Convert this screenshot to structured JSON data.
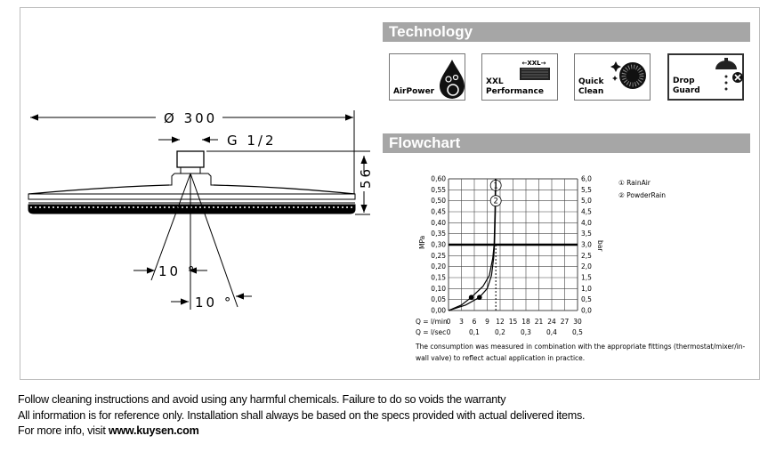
{
  "technology": {
    "title": "Technology",
    "items": [
      {
        "label": "AirPower",
        "icon": "air-drop-icon"
      },
      {
        "label": "XXL\nPerformance",
        "icon": "xxl-spray-icon",
        "badge": "←XXL→"
      },
      {
        "label": "Quick\nClean",
        "icon": "quick-clean-icon"
      },
      {
        "label": "Drop\nGuard",
        "icon": "drop-guard-icon"
      }
    ]
  },
  "flowchart": {
    "title": "Flowchart"
  },
  "drawing": {
    "diameter": "Ø 300",
    "thread": "G 1/2",
    "height": "56",
    "angle_left": "10 °",
    "angle_right": "10 °"
  },
  "chart_data": {
    "type": "line",
    "xlabel": "Q = l/min",
    "xlabel2": "Q = l/sec",
    "ylabel": "MPa",
    "ylabel2": "bar",
    "xlim": [
      0,
      30
    ],
    "ylim": [
      0,
      0.6
    ],
    "grid": true,
    "x_ticks": [
      "0",
      "3",
      "6",
      "9",
      "12",
      "15",
      "18",
      "21",
      "24",
      "27",
      "30"
    ],
    "x2_ticks": [
      "0",
      "0,1",
      "0,2",
      "0,3",
      "0,4",
      "0,5"
    ],
    "y_ticks": [
      "0,00",
      "0,05",
      "0,10",
      "0,15",
      "0,20",
      "0,25",
      "0,30",
      "0,35",
      "0,40",
      "0,45",
      "0,50",
      "0,55",
      "0,60"
    ],
    "y2_ticks": [
      "0,0",
      "0,5",
      "1,0",
      "1,5",
      "2,0",
      "2,5",
      "3,0",
      "3,5",
      "4,0",
      "4,5",
      "5,0",
      "5,5",
      "6,0"
    ],
    "reference_line_y": 0.3,
    "reference_dashed_x": 11,
    "legend_position": "right",
    "series": [
      {
        "name": "① RainAir",
        "marker": "1",
        "points": [
          [
            0,
            0
          ],
          [
            3,
            0.025
          ],
          [
            5.3,
            0.06
          ],
          [
            8,
            0.11
          ],
          [
            9.5,
            0.16
          ],
          [
            10.3,
            0.24
          ],
          [
            10.6,
            0.3
          ],
          [
            10.8,
            0.45
          ],
          [
            10.9,
            0.6
          ]
        ],
        "marked_point": [
          5.3,
          0.06
        ]
      },
      {
        "name": "② PowderRain",
        "marker": "2",
        "points": [
          [
            0,
            0
          ],
          [
            4,
            0.025
          ],
          [
            7.2,
            0.06
          ],
          [
            9,
            0.1
          ],
          [
            10,
            0.16
          ],
          [
            10.5,
            0.24
          ],
          [
            10.7,
            0.3
          ],
          [
            10.9,
            0.45
          ],
          [
            11,
            0.6
          ]
        ],
        "marked_point": [
          7.2,
          0.06
        ]
      }
    ],
    "note": "The consumption was measured in combination with the appropriate fittings (thermostat/mixer/in-",
    "note2": "wall valve) to reflect actual application in practice."
  },
  "footer": {
    "line1": "Follow cleaning instructions and avoid using any harmful chemicals. Failure to do so voids the warranty",
    "line2": "All information is for reference only. Installation shall always be based on the specs provided with actual delivered items.",
    "line3_prefix": "For more info, visit ",
    "website": "www.kuysen.com"
  }
}
